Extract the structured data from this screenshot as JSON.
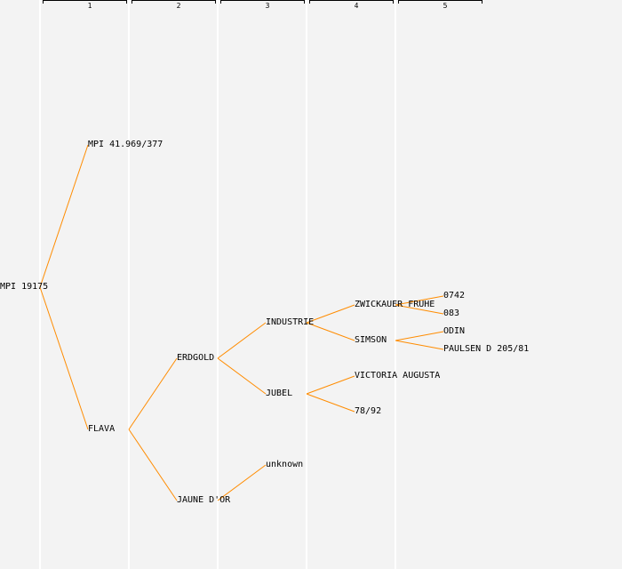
{
  "edge_color": "#ff8c00",
  "background": "#f3f3f3",
  "generations": [
    "1",
    "2",
    "3",
    "4",
    "5"
  ],
  "nodes": {
    "root": "MPI 19175",
    "mpi41969": "MPI 41.969/377",
    "flava": "FLAVA",
    "erdgold": "ERDGOLD",
    "jaune": "JAUNE D'OR",
    "industrie": "INDUSTRIE",
    "jubel": "JUBEL",
    "unknown": "unknown",
    "zwickauer": "ZWICKAUER FRUHE",
    "simson": "SIMSON",
    "victoria": "VICTORIA AUGUSTA",
    "n7892": "78/92",
    "n0742": "0742",
    "n083": "083",
    "odin": "ODIN",
    "paulsen": "PAULSEN D 205/81"
  },
  "edges": [
    [
      "root",
      "mpi41969"
    ],
    [
      "root",
      "flava"
    ],
    [
      "flava",
      "erdgold"
    ],
    [
      "flava",
      "jaune"
    ],
    [
      "erdgold",
      "industrie"
    ],
    [
      "erdgold",
      "jubel"
    ],
    [
      "jaune",
      "unknown"
    ],
    [
      "industrie",
      "zwickauer"
    ],
    [
      "industrie",
      "simson"
    ],
    [
      "jubel",
      "victoria"
    ],
    [
      "jubel",
      "n7892"
    ],
    [
      "zwickauer",
      "n0742"
    ],
    [
      "zwickauer",
      "n083"
    ],
    [
      "simson",
      "odin"
    ],
    [
      "simson",
      "paulsen"
    ]
  ]
}
